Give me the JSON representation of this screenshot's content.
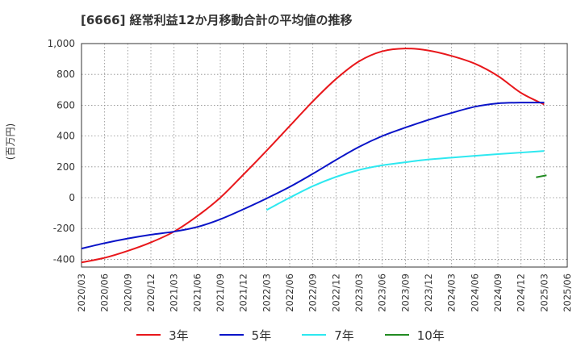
{
  "title": "[6666]  経常利益12か月移動合計の平均値の推移",
  "y_unit_label": "(百万円)",
  "chart_data": {
    "type": "line",
    "x": [
      "2020/03",
      "2020/06",
      "2020/09",
      "2020/12",
      "2021/03",
      "2021/06",
      "2021/09",
      "2021/12",
      "2022/03",
      "2022/06",
      "2022/09",
      "2022/12",
      "2023/03",
      "2023/06",
      "2023/09",
      "2023/12",
      "2024/03",
      "2024/06",
      "2024/09",
      "2024/12",
      "2025/03",
      "2025/06"
    ],
    "ylim": [
      -450,
      1000
    ],
    "yticks": [
      -400,
      -200,
      0,
      200,
      400,
      600,
      800,
      1000
    ],
    "ytick_labels": [
      "-400",
      "-200",
      "0",
      "200",
      "400",
      "600",
      "800",
      "1,000"
    ],
    "grid": true,
    "legend_position": "bottom",
    "series": [
      {
        "name": "3年",
        "color": "#e8171b",
        "values": [
          -420,
          -390,
          -345,
          -290,
          -220,
          -120,
          0,
          150,
          305,
          465,
          625,
          770,
          885,
          950,
          968,
          955,
          920,
          870,
          790,
          680,
          605,
          null
        ]
      },
      {
        "name": "5年",
        "color": "#0a14c8",
        "values": [
          -330,
          -295,
          -265,
          -240,
          -220,
          -190,
          -140,
          -75,
          -5,
          70,
          155,
          245,
          330,
          400,
          455,
          505,
          550,
          590,
          612,
          617,
          617,
          null
        ]
      },
      {
        "name": "7年",
        "color": "#2ee8f0",
        "values": [
          null,
          null,
          null,
          null,
          null,
          null,
          null,
          null,
          -80,
          0,
          75,
          135,
          180,
          210,
          230,
          248,
          260,
          272,
          283,
          293,
          303,
          null
        ]
      },
      {
        "name": "10年",
        "color": "#228b22",
        "values": [
          null,
          null,
          null,
          null,
          null,
          null,
          null,
          null,
          null,
          null,
          null,
          null,
          null,
          null,
          null,
          null,
          null,
          null,
          null,
          null,
          140,
          null
        ]
      }
    ]
  }
}
